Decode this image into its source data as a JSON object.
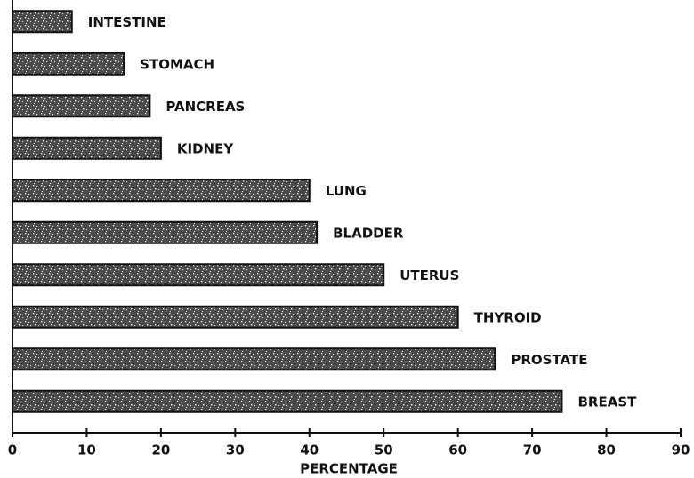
{
  "chart_data": {
    "type": "hbar",
    "categories": [
      "INTESTINE",
      "STOMACH",
      "PANCREAS",
      "KIDNEY",
      "LUNG",
      "BLADDER",
      "UTERUS",
      "THYROID",
      "PROSTATE",
      "BREAST"
    ],
    "values": [
      8,
      15,
      18.5,
      20,
      40,
      41,
      50,
      60,
      65,
      74
    ],
    "color": "#3a3a3a",
    "xlabel": "PERCENTAGE",
    "xlim": [
      0,
      90
    ],
    "xticks": [
      0,
      10,
      20,
      30,
      40,
      50,
      60,
      70,
      80,
      90
    ]
  }
}
